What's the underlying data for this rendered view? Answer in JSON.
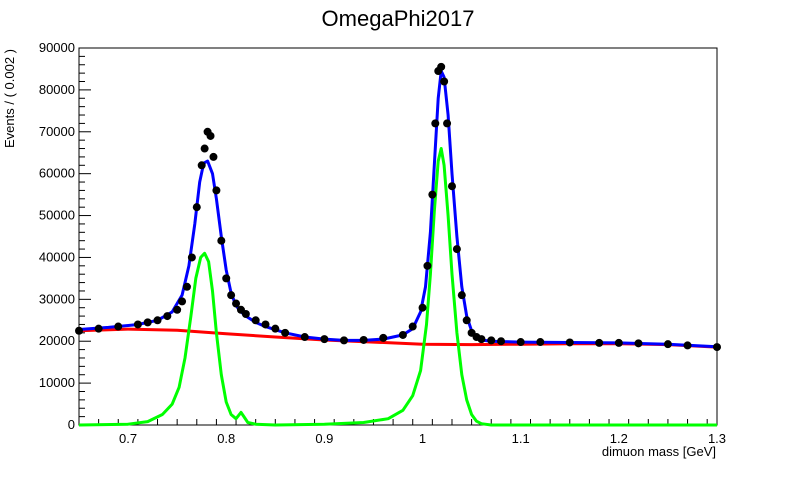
{
  "chart_data": {
    "type": "line",
    "title": "OmegaPhi2017",
    "xlabel": "dimuon mass [GeV]",
    "ylabel": "Events / ( 0.002 )",
    "xlim": [
      0.65,
      1.3
    ],
    "ylim": [
      0,
      90000
    ],
    "x_ticks": [
      0.7,
      0.8,
      0.9,
      1.0,
      1.1,
      1.2,
      1.3
    ],
    "x_tick_labels": [
      "0.7",
      "0.8",
      "0.9",
      "1",
      "1.1",
      "1.2",
      "1.3"
    ],
    "y_ticks": [
      0,
      10000,
      20000,
      30000,
      40000,
      50000,
      60000,
      70000,
      80000,
      90000
    ],
    "y_tick_labels": [
      "0",
      "10000",
      "20000",
      "30000",
      "40000",
      "50000",
      "60000",
      "70000",
      "80000",
      "90000"
    ],
    "grid": false,
    "legend": "none",
    "colors": {
      "data": "#000000",
      "total_fit": "#0000ff",
      "background": "#ff0000",
      "signal": "#00ff00"
    },
    "series": [
      {
        "role": "data",
        "style": "points",
        "x": [
          0.65,
          0.67,
          0.69,
          0.71,
          0.72,
          0.73,
          0.74,
          0.75,
          0.755,
          0.76,
          0.765,
          0.77,
          0.775,
          0.778,
          0.781,
          0.784,
          0.787,
          0.79,
          0.795,
          0.8,
          0.805,
          0.81,
          0.815,
          0.82,
          0.83,
          0.84,
          0.85,
          0.86,
          0.88,
          0.9,
          0.92,
          0.94,
          0.96,
          0.98,
          0.99,
          1.0,
          1.005,
          1.01,
          1.013,
          1.016,
          1.019,
          1.022,
          1.025,
          1.03,
          1.035,
          1.04,
          1.045,
          1.05,
          1.055,
          1.06,
          1.07,
          1.08,
          1.1,
          1.12,
          1.15,
          1.18,
          1.2,
          1.22,
          1.25,
          1.27,
          1.3
        ],
        "y": [
          22500,
          23000,
          23500,
          24000,
          24500,
          25000,
          26000,
          27500,
          29500,
          33000,
          40000,
          52000,
          62000,
          66000,
          70000,
          69000,
          64000,
          56000,
          44000,
          35000,
          31000,
          29000,
          27500,
          26500,
          25000,
          24000,
          23000,
          22000,
          21000,
          20500,
          20200,
          20300,
          20800,
          21500,
          23500,
          28000,
          38000,
          55000,
          72000,
          84500,
          85500,
          82000,
          72000,
          57000,
          42000,
          31000,
          25000,
          22000,
          21000,
          20500,
          20200,
          20000,
          19800,
          19800,
          19700,
          19600,
          19600,
          19500,
          19300,
          19000,
          18600
        ]
      },
      {
        "role": "total_fit",
        "style": "line",
        "x": [
          0.65,
          0.68,
          0.71,
          0.73,
          0.745,
          0.755,
          0.762,
          0.768,
          0.773,
          0.777,
          0.781,
          0.786,
          0.79,
          0.795,
          0.8,
          0.805,
          0.81,
          0.815,
          0.82,
          0.83,
          0.84,
          0.86,
          0.88,
          0.9,
          0.92,
          0.94,
          0.96,
          0.98,
          0.99,
          0.998,
          1.003,
          1.008,
          1.012,
          1.016,
          1.019,
          1.022,
          1.026,
          1.03,
          1.035,
          1.04,
          1.045,
          1.05,
          1.055,
          1.06,
          1.07,
          1.08,
          1.1,
          1.15,
          1.2,
          1.25,
          1.3
        ],
        "y": [
          22800,
          23300,
          24000,
          25000,
          27000,
          31000,
          38000,
          48000,
          58000,
          62500,
          63000,
          60000,
          54000,
          45000,
          37000,
          31500,
          28500,
          27000,
          26000,
          24500,
          23500,
          22000,
          21000,
          20500,
          20200,
          20200,
          20500,
          21500,
          23000,
          27000,
          33000,
          46000,
          62000,
          78000,
          84500,
          83000,
          74000,
          60000,
          45000,
          33000,
          26000,
          22500,
          21000,
          20300,
          20000,
          19900,
          19800,
          19700,
          19600,
          19300,
          18700
        ]
      },
      {
        "role": "background",
        "style": "line",
        "x": [
          0.65,
          0.7,
          0.75,
          0.8,
          0.85,
          0.9,
          0.95,
          1.0,
          1.05,
          1.1,
          1.15,
          1.2,
          1.25,
          1.3
        ],
        "y": [
          22500,
          22900,
          22600,
          21800,
          21000,
          20300,
          19800,
          19300,
          19200,
          19300,
          19400,
          19400,
          19200,
          18600
        ]
      },
      {
        "role": "signal",
        "style": "line",
        "x": [
          0.65,
          0.7,
          0.72,
          0.735,
          0.745,
          0.752,
          0.758,
          0.764,
          0.769,
          0.774,
          0.778,
          0.782,
          0.786,
          0.79,
          0.795,
          0.8,
          0.805,
          0.81,
          0.815,
          0.818,
          0.822,
          0.83,
          0.85,
          0.9,
          0.94,
          0.965,
          0.98,
          0.99,
          0.998,
          1.004,
          1.008,
          1.012,
          1.016,
          1.019,
          1.022,
          1.026,
          1.03,
          1.035,
          1.04,
          1.045,
          1.05,
          1.055,
          1.06,
          1.07,
          1.1,
          1.2,
          1.3
        ],
        "y": [
          0,
          200,
          800,
          2500,
          5000,
          9000,
          16000,
          26000,
          35000,
          40000,
          41000,
          39000,
          32000,
          22000,
          12000,
          5500,
          2500,
          1500,
          3000,
          2000,
          600,
          200,
          0,
          200,
          600,
          1500,
          3500,
          7000,
          13000,
          24000,
          36000,
          51000,
          63000,
          66000,
          62000,
          50000,
          36000,
          22000,
          12000,
          6000,
          2500,
          900,
          300,
          0,
          0,
          0,
          0
        ]
      }
    ]
  }
}
